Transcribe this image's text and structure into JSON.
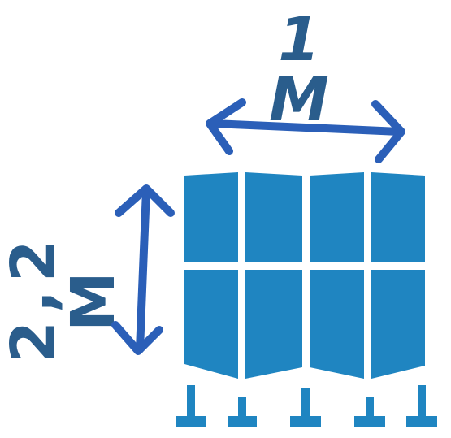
{
  "dimensions": {
    "width_label": "1 M",
    "height_label": "2,2 M"
  },
  "colors": {
    "label_color": "#2a5d8c",
    "arrow_color": "#2b5fb8",
    "panel_color": "#1f85c1"
  },
  "icons": {
    "width_arrow": "double-headed-horizontal-arrow",
    "height_arrow": "double-headed-vertical-arrow",
    "screen": "folding-screen-panels",
    "feet": "t-shaped-feet"
  }
}
